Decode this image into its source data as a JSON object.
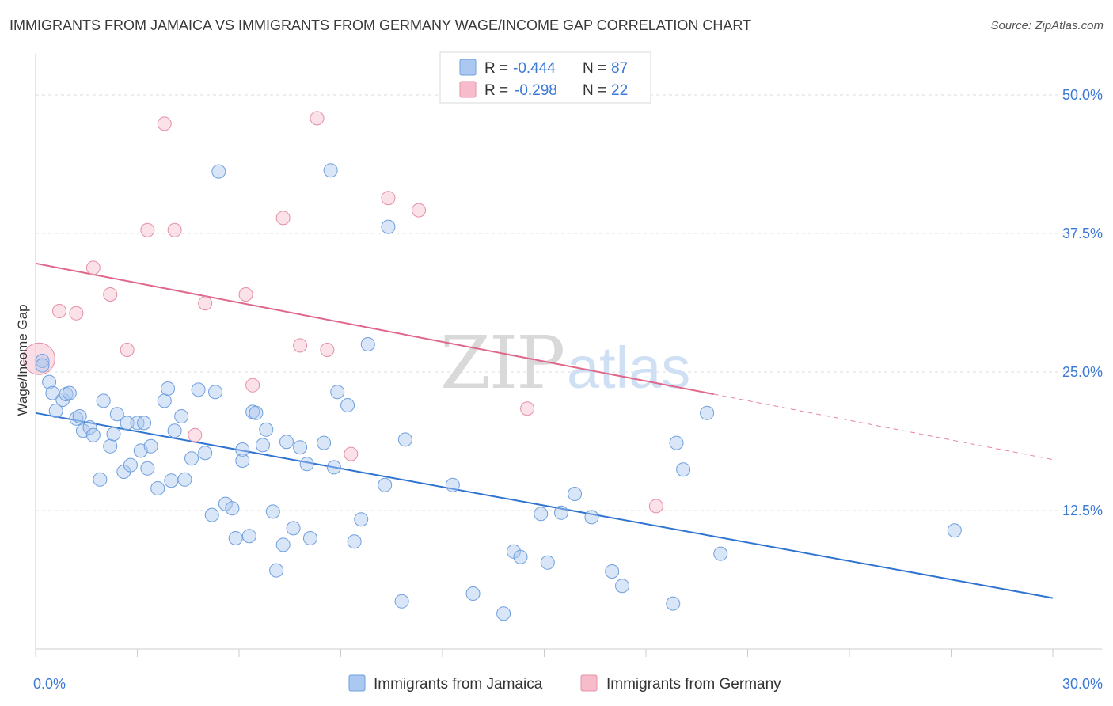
{
  "header": {
    "title": "IMMIGRANTS FROM JAMAICA VS IMMIGRANTS FROM GERMANY WAGE/INCOME GAP CORRELATION CHART",
    "source": "Source: ZipAtlas.com"
  },
  "watermark": {
    "zip": "ZIP",
    "atlas": "atlas"
  },
  "legend_top": [
    {
      "r_label": "R = ",
      "r_value": "-0.444",
      "n_label": "N = ",
      "n_value": "87"
    },
    {
      "r_label": "R = ",
      "r_value": "-0.298",
      "n_label": "N = ",
      "n_value": "22"
    }
  ],
  "colors": {
    "jamaica_fill": "#aac8f0",
    "jamaica_stroke": "#6f9fde",
    "jamaica_line": "#2f74d0",
    "germany_fill": "#f7bccb",
    "germany_stroke": "#e58fa6",
    "germany_line": "#e0668a",
    "tick_color": "#3b78d8"
  },
  "chart_data": {
    "type": "scatter",
    "title": "IMMIGRANTS FROM JAMAICA VS IMMIGRANTS FROM GERMANY WAGE/INCOME GAP CORRELATION CHART",
    "xlabel": "",
    "ylabel": "Wage/Income Gap",
    "xlim": [
      0,
      30
    ],
    "ylim": [
      0,
      53
    ],
    "x_tick_labels": [
      "0.0%",
      "30.0%"
    ],
    "y_ticks": [
      12.5,
      25.0,
      37.5,
      50.0
    ],
    "y_tick_labels": [
      "12.5%",
      "25.0%",
      "37.5%",
      "50.0%"
    ],
    "grid": true,
    "legend_placement": "bottom",
    "series": [
      {
        "name": "Immigrants from Jamaica",
        "r": -0.444,
        "n": 87,
        "trend": {
          "x": [
            0,
            30
          ],
          "y": [
            21.3,
            4.6
          ]
        },
        "points": [
          [
            0.2,
            26.0
          ],
          [
            0.2,
            25.6
          ],
          [
            0.4,
            24.1
          ],
          [
            0.5,
            23.1
          ],
          [
            0.6,
            21.5
          ],
          [
            0.8,
            22.5
          ],
          [
            0.9,
            23.0
          ],
          [
            1.0,
            23.1
          ],
          [
            1.2,
            20.8
          ],
          [
            1.3,
            21.0
          ],
          [
            1.4,
            19.7
          ],
          [
            1.6,
            20.0
          ],
          [
            1.7,
            19.3
          ],
          [
            1.9,
            15.3
          ],
          [
            2.0,
            22.4
          ],
          [
            2.2,
            18.3
          ],
          [
            2.3,
            19.4
          ],
          [
            2.4,
            21.2
          ],
          [
            2.6,
            16.0
          ],
          [
            2.7,
            20.4
          ],
          [
            2.8,
            16.6
          ],
          [
            3.0,
            20.4
          ],
          [
            3.1,
            17.9
          ],
          [
            3.2,
            20.4
          ],
          [
            3.3,
            16.3
          ],
          [
            3.4,
            18.3
          ],
          [
            3.6,
            14.5
          ],
          [
            3.8,
            22.4
          ],
          [
            3.9,
            23.5
          ],
          [
            4.0,
            15.2
          ],
          [
            4.1,
            19.7
          ],
          [
            4.3,
            21.0
          ],
          [
            4.4,
            15.3
          ],
          [
            4.6,
            17.2
          ],
          [
            4.8,
            23.4
          ],
          [
            5.0,
            17.7
          ],
          [
            5.2,
            12.1
          ],
          [
            5.3,
            23.2
          ],
          [
            5.4,
            43.1
          ],
          [
            5.6,
            13.1
          ],
          [
            5.8,
            12.7
          ],
          [
            5.9,
            10.0
          ],
          [
            6.1,
            18.0
          ],
          [
            6.1,
            17.0
          ],
          [
            6.3,
            10.2
          ],
          [
            6.4,
            21.4
          ],
          [
            6.5,
            21.3
          ],
          [
            6.7,
            18.4
          ],
          [
            6.8,
            19.8
          ],
          [
            7.0,
            12.4
          ],
          [
            7.1,
            7.1
          ],
          [
            7.3,
            9.4
          ],
          [
            7.4,
            18.7
          ],
          [
            7.6,
            10.9
          ],
          [
            7.8,
            18.2
          ],
          [
            8.0,
            16.7
          ],
          [
            8.1,
            10.0
          ],
          [
            8.5,
            18.6
          ],
          [
            8.7,
            43.2
          ],
          [
            8.8,
            16.4
          ],
          [
            8.9,
            23.2
          ],
          [
            9.2,
            22.0
          ],
          [
            9.4,
            9.7
          ],
          [
            9.6,
            11.7
          ],
          [
            9.8,
            27.5
          ],
          [
            10.3,
            14.8
          ],
          [
            10.4,
            38.1
          ],
          [
            10.8,
            4.3
          ],
          [
            10.9,
            18.9
          ],
          [
            12.3,
            14.8
          ],
          [
            12.9,
            5.0
          ],
          [
            13.8,
            3.2
          ],
          [
            14.1,
            8.8
          ],
          [
            14.3,
            8.3
          ],
          [
            14.9,
            12.2
          ],
          [
            15.1,
            7.8
          ],
          [
            15.5,
            12.3
          ],
          [
            15.9,
            14.0
          ],
          [
            16.4,
            11.9
          ],
          [
            17.0,
            7.0
          ],
          [
            17.3,
            5.7
          ],
          [
            18.8,
            4.1
          ],
          [
            18.9,
            18.6
          ],
          [
            19.1,
            16.2
          ],
          [
            19.8,
            21.3
          ],
          [
            20.2,
            8.6
          ],
          [
            27.1,
            10.7
          ]
        ]
      },
      {
        "name": "Immigrants from Germany",
        "r": -0.298,
        "n": 22,
        "trend": {
          "x": [
            0,
            20
          ],
          "y": [
            34.8,
            23.0
          ]
        },
        "trend_dashed": {
          "x": [
            20,
            30
          ],
          "y": [
            23.0,
            17.1
          ]
        },
        "points": [
          [
            0.1,
            26.2
          ],
          [
            0.7,
            30.5
          ],
          [
            1.2,
            30.3
          ],
          [
            1.7,
            34.4
          ],
          [
            2.2,
            32.0
          ],
          [
            2.7,
            27.0
          ],
          [
            3.3,
            37.8
          ],
          [
            3.8,
            47.4
          ],
          [
            4.1,
            37.8
          ],
          [
            4.7,
            19.3
          ],
          [
            5.0,
            31.2
          ],
          [
            6.2,
            32.0
          ],
          [
            6.4,
            23.8
          ],
          [
            7.3,
            38.9
          ],
          [
            7.8,
            27.4
          ],
          [
            8.3,
            47.9
          ],
          [
            8.6,
            27.0
          ],
          [
            9.3,
            17.6
          ],
          [
            10.4,
            40.7
          ],
          [
            11.3,
            39.6
          ],
          [
            14.5,
            21.7
          ],
          [
            18.3,
            12.9
          ]
        ]
      }
    ]
  }
}
